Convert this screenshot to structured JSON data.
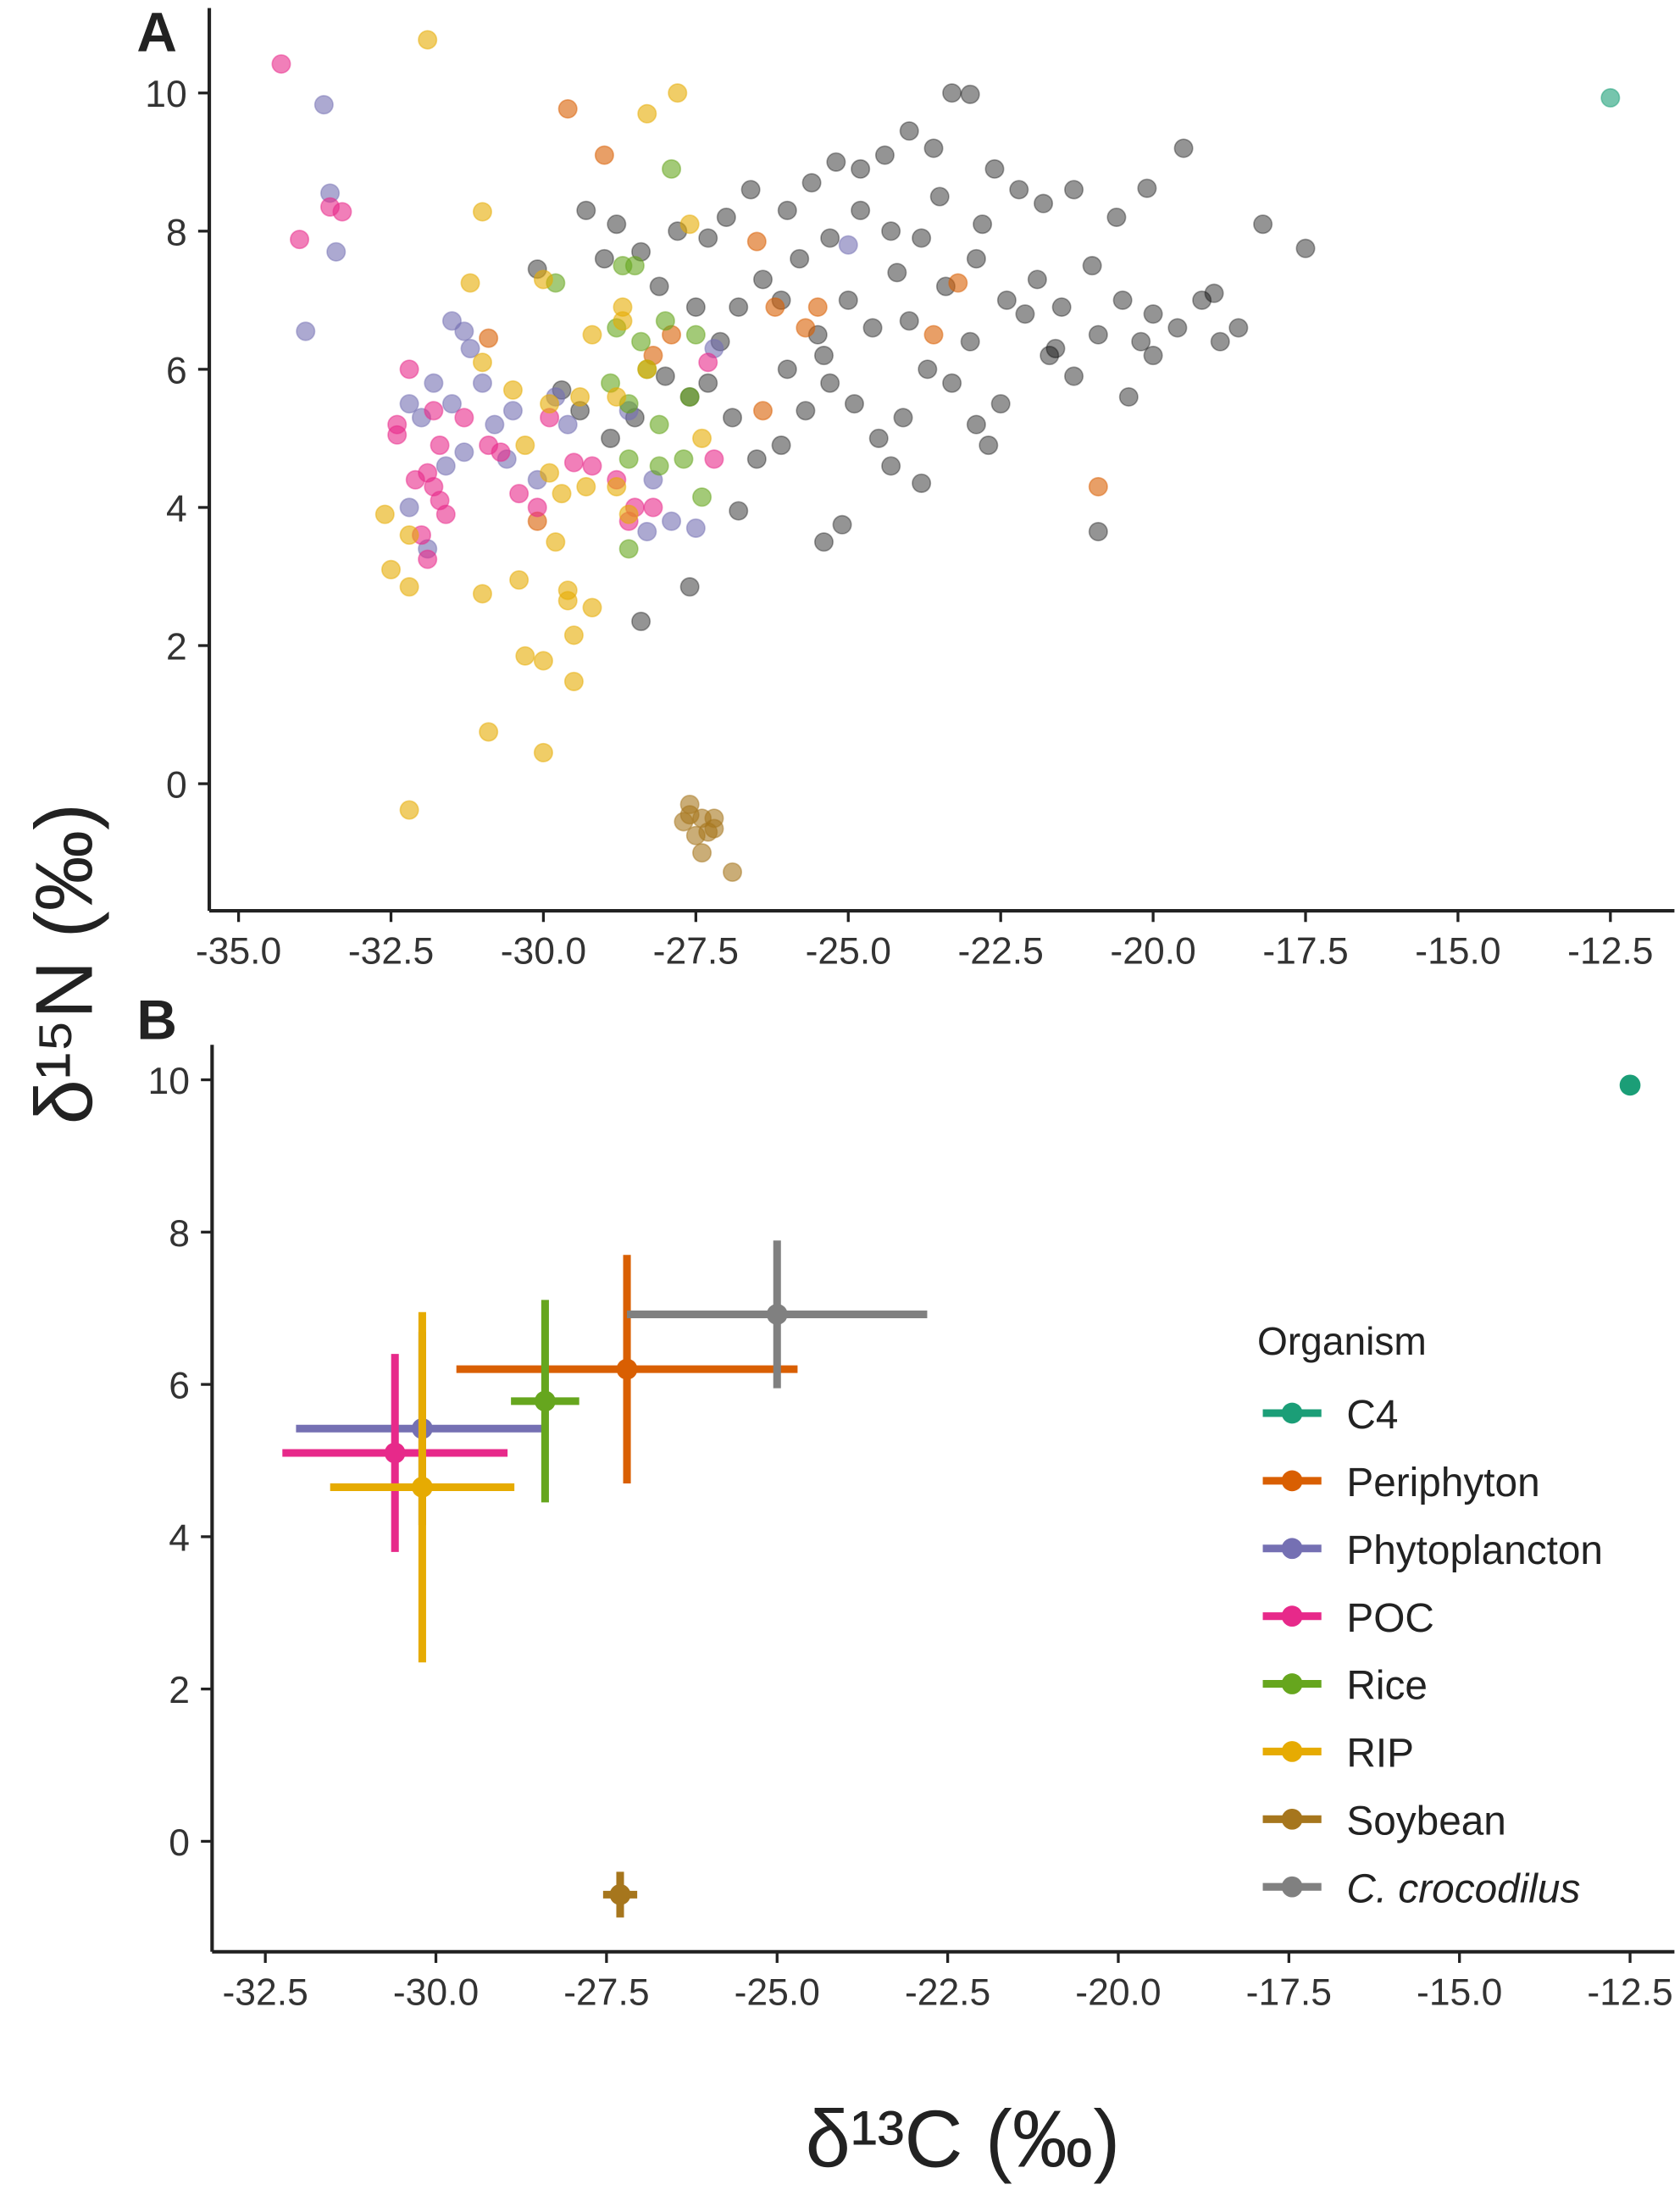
{
  "chart_data": [
    {
      "type": "scatter",
      "panel": "A",
      "ylabel": "δ¹⁵N (‰)",
      "alpha": 0.6,
      "xlim": [
        -35.48,
        -11.45
      ],
      "ylim": [
        -1.84,
        11.23
      ],
      "xticks": [
        {
          "value": -35,
          "label": "-35.0"
        },
        -32.5,
        {
          "value": -30,
          "label": "-30.0"
        },
        -27.5,
        {
          "value": -25,
          "label": "-25.0"
        },
        -22.5,
        {
          "value": -20,
          "label": "-20.0"
        },
        -17.5,
        {
          "value": -15,
          "label": "-15.0"
        },
        -12.5
      ],
      "yticks": [
        0,
        2,
        4,
        6,
        8,
        10
      ],
      "series": [
        {
          "name": "C. crocodilus",
          "color": "#000000",
          "x": [
            -29.3,
            -28.8,
            -30.1,
            -29.0,
            -28.1,
            -28.4,
            -27.8,
            -27.3,
            -27.0,
            -26.6,
            -26.0,
            -25.6,
            -25.2,
            -24.8,
            -24.4,
            -24.0,
            -23.6,
            -23.3,
            -23.0,
            -22.6,
            -22.2,
            -21.8,
            -21.3,
            -20.6,
            -20.1,
            -19.5,
            -18.2,
            -17.5,
            -18.6,
            -18.9,
            -19.2,
            -19.6,
            -20.0,
            -20.4,
            -20.9,
            -21.3,
            -21.7,
            -22.1,
            -22.5,
            -22.9,
            -23.3,
            -23.7,
            -24.1,
            -24.5,
            -24.9,
            -25.3,
            -25.7,
            -26.1,
            -26.5,
            -26.9,
            -27.3,
            -27.6,
            -28.0,
            -28.5,
            -28.9,
            -29.4,
            -29.7,
            -28.4,
            -27.6,
            -26.8,
            -25.4,
            -25.1,
            -23.8,
            -20.9,
            -24.3,
            -22.7,
            -26.0,
            -25.5,
            -25.0,
            -24.6,
            -24.2,
            -23.8,
            -23.4,
            -22.9,
            -22.4,
            -21.9,
            -21.5,
            -21.0,
            -20.5,
            -20.0,
            -26.4,
            -26.8,
            -27.1,
            -27.5,
            -25.8,
            -25.3,
            -24.8,
            -24.3,
            -23.5,
            -22.8,
            -26.1,
            -25.4,
            -24.0,
            -23.0,
            -21.6,
            -20.2,
            -19.0
          ],
          "y": [
            8.3,
            8.1,
            7.45,
            7.6,
            7.2,
            7.7,
            8.0,
            7.9,
            8.2,
            8.6,
            8.3,
            8.7,
            9.0,
            8.9,
            9.1,
            9.45,
            9.2,
            10.0,
            9.98,
            8.9,
            8.6,
            8.4,
            8.6,
            8.2,
            8.62,
            9.2,
            8.1,
            7.75,
            6.6,
            6.4,
            7.0,
            6.6,
            6.2,
            5.6,
            6.5,
            5.9,
            6.2,
            6.8,
            5.5,
            5.2,
            5.8,
            6.0,
            5.3,
            5.0,
            5.5,
            5.8,
            5.4,
            4.9,
            4.7,
            5.3,
            5.8,
            5.6,
            5.9,
            5.3,
            5.0,
            5.4,
            5.7,
            2.35,
            2.85,
            3.95,
            3.5,
            3.75,
            4.35,
            3.65,
            4.6,
            4.9,
            6.0,
            6.5,
            7.0,
            6.6,
            7.4,
            7.9,
            7.2,
            7.6,
            7.0,
            7.3,
            6.9,
            7.5,
            7.0,
            6.8,
            7.3,
            6.9,
            6.4,
            6.9,
            7.6,
            7.9,
            8.3,
            8.0,
            8.5,
            8.1,
            7.0,
            6.2,
            6.7,
            6.4,
            6.3,
            6.4,
            7.1
          ]
        },
        {
          "name": "Periphyton",
          "color": "#d95f02",
          "x": [
            -29.6,
            -29.0,
            -26.5,
            -26.2,
            -25.7,
            -26.4,
            -27.9,
            -28.2,
            -30.9,
            -30.1,
            -23.6,
            -23.2,
            -20.9,
            -25.5
          ],
          "y": [
            9.77,
            9.1,
            7.85,
            6.9,
            6.6,
            5.4,
            6.5,
            6.2,
            6.45,
            3.8,
            6.5,
            7.25,
            4.3,
            6.9
          ]
        },
        {
          "name": "Phytoplancton",
          "color": "#7570b3",
          "x": [
            -33.6,
            -33.5,
            -33.4,
            -33.9,
            -31.5,
            -31.3,
            -31.2,
            -32.2,
            -32.0,
            -31.8,
            -31.5,
            -31.0,
            -30.8,
            -30.5,
            -31.6,
            -31.3,
            -30.6,
            -30.1,
            -29.8,
            -29.6,
            -28.6,
            -28.2,
            -27.9,
            -27.5,
            -32.2,
            -31.9,
            -27.2,
            -25.0,
            -28.3
          ],
          "y": [
            9.83,
            8.55,
            7.7,
            6.55,
            6.7,
            6.55,
            6.3,
            5.5,
            5.3,
            5.8,
            5.5,
            5.8,
            5.2,
            5.4,
            4.6,
            4.8,
            4.7,
            4.4,
            5.6,
            5.2,
            5.4,
            4.4,
            3.8,
            3.7,
            4.0,
            3.4,
            6.3,
            7.8,
            3.65
          ]
        },
        {
          "name": "POC",
          "color": "#e7298a",
          "x": [
            -34.3,
            -34.0,
            -33.5,
            -33.3,
            -32.2,
            -32.4,
            -32.4,
            -31.8,
            -31.7,
            -31.9,
            -31.8,
            -31.7,
            -31.6,
            -32.0,
            -31.9,
            -31.3,
            -30.9,
            -30.7,
            -30.4,
            -30.1,
            -29.9,
            -29.5,
            -29.2,
            -28.8,
            -28.5,
            -28.6,
            -28.2,
            -27.3,
            -27.2,
            -32.1
          ],
          "y": [
            10.42,
            7.88,
            8.35,
            8.28,
            6.0,
            5.2,
            5.05,
            5.4,
            4.9,
            4.5,
            4.3,
            4.1,
            3.9,
            3.6,
            3.25,
            5.3,
            4.9,
            4.8,
            4.2,
            4.0,
            5.3,
            4.65,
            4.6,
            4.4,
            4.0,
            3.8,
            4.0,
            6.1,
            4.7,
            4.4
          ]
        },
        {
          "name": "Rice",
          "color": "#66a61e",
          "x": [
            -27.9,
            -28.7,
            -28.5,
            -29.8,
            -28.8,
            -28.4,
            -28.0,
            -28.9,
            -28.6,
            -28.1,
            -28.6,
            -28.1,
            -27.7,
            -28.6,
            -27.4,
            -27.6,
            -28.3,
            -27.5
          ],
          "y": [
            8.9,
            7.5,
            7.5,
            7.25,
            6.6,
            6.4,
            6.7,
            5.8,
            5.5,
            5.2,
            4.7,
            4.6,
            4.7,
            3.4,
            4.15,
            5.6,
            6.0,
            6.5
          ]
        },
        {
          "name": "RIP",
          "color": "#e6ab02",
          "x": [
            -31.9,
            -27.8,
            -28.3,
            -31.0,
            -27.6,
            -31.2,
            -30.0,
            -28.7,
            -28.7,
            -29.2,
            -31.0,
            -30.5,
            -29.9,
            -29.4,
            -28.8,
            -30.3,
            -29.9,
            -29.7,
            -29.3,
            -28.8,
            -28.6,
            -32.6,
            -32.5,
            -32.2,
            -32.2,
            -31.0,
            -30.4,
            -29.6,
            -29.2,
            -29.8,
            -30.3,
            -30.0,
            -29.5,
            -29.5,
            -30.9,
            -30.0,
            -32.2,
            -29.6,
            -28.3,
            -27.4
          ],
          "y": [
            10.77,
            10.0,
            9.7,
            8.28,
            8.1,
            7.25,
            7.3,
            6.9,
            6.7,
            6.5,
            6.1,
            5.7,
            5.5,
            5.6,
            5.6,
            4.9,
            4.5,
            4.2,
            4.3,
            4.3,
            3.9,
            3.9,
            3.1,
            3.6,
            2.85,
            2.75,
            2.95,
            2.65,
            2.55,
            3.5,
            1.85,
            1.78,
            2.15,
            1.48,
            0.75,
            0.45,
            -0.38,
            2.8,
            6.0,
            5.0
          ]
        },
        {
          "name": "Soybean",
          "color": "#a6761d",
          "x": [
            -27.6,
            -27.7,
            -27.4,
            -27.2,
            -27.3,
            -27.5,
            -27.4,
            -27.2,
            -26.9,
            -27.6
          ],
          "y": [
            -0.3,
            -0.55,
            -0.5,
            -0.5,
            -0.7,
            -0.75,
            -1.0,
            -0.65,
            -1.28,
            -0.45
          ]
        },
        {
          "name": "C4",
          "color": "#1b9e77",
          "x": [
            -12.5
          ],
          "y": [
            9.93
          ]
        }
      ]
    },
    {
      "type": "errorbar",
      "panel": "B",
      "xlabel": "δ¹³C (‰)",
      "legend_title": "Organism",
      "legend": "right",
      "xlim": [
        -33.28,
        -11.85
      ],
      "ylim": [
        -1.45,
        10.46
      ],
      "xticks": [
        -32.5,
        {
          "value": -30,
          "label": "-30.0"
        },
        -27.5,
        {
          "value": -25,
          "label": "-25.0"
        },
        -22.5,
        {
          "value": -20,
          "label": "-20.0"
        },
        -17.5,
        {
          "value": -15,
          "label": "-15.0"
        },
        -12.5
      ],
      "yticks": [
        0,
        2,
        4,
        6,
        8,
        10
      ],
      "series": [
        {
          "name": "C4",
          "color": "#1b9e77",
          "x": [
            -12.5
          ],
          "y": [
            9.93
          ]
        },
        {
          "name": "Periphyton",
          "color": "#d95f02",
          "x": [
            -27.2
          ],
          "y": [
            6.2
          ],
          "xerr": [
            2.5
          ],
          "yerr": [
            1.5
          ]
        },
        {
          "name": "Phytoplancton",
          "color": "#7570b3",
          "x": [
            -30.2
          ],
          "y": [
            5.42
          ],
          "xerr": [
            1.85
          ],
          "yerr": [
            1.27
          ]
        },
        {
          "name": "POC",
          "color": "#e7298a",
          "x": [
            -30.6
          ],
          "y": [
            5.1
          ],
          "xerr": [
            1.65
          ],
          "yerr": [
            1.3
          ]
        },
        {
          "name": "Rice",
          "color": "#66a61e",
          "x": [
            -28.4
          ],
          "y": [
            5.78
          ],
          "xerr": [
            0.5
          ],
          "yerr": [
            1.33
          ]
        },
        {
          "name": "RIP",
          "color": "#e6ab02",
          "x": [
            -30.2
          ],
          "y": [
            4.65
          ],
          "xerr": [
            1.35
          ],
          "yerr": [
            2.3
          ]
        },
        {
          "name": "Soybean",
          "color": "#a6761d",
          "x": [
            -27.3
          ],
          "y": [
            -0.7
          ],
          "xerr": [
            0.25
          ],
          "yerr": [
            0.3
          ]
        },
        {
          "name": "C. crocodilus",
          "color": "#808080",
          "italic": true,
          "x": [
            -25.0
          ],
          "y": [
            6.92
          ],
          "xerr": [
            2.2
          ],
          "yerr": [
            0.97
          ]
        }
      ]
    }
  ]
}
